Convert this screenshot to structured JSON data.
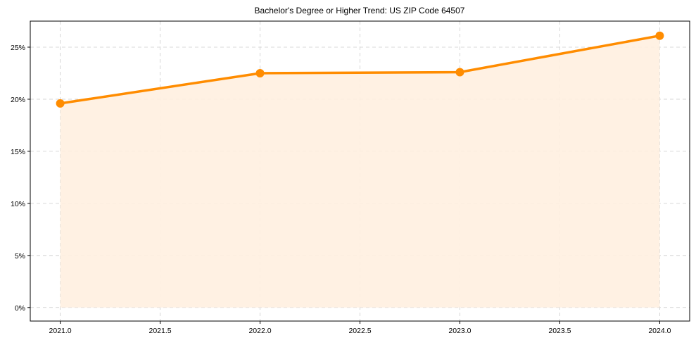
{
  "chart_data": {
    "type": "line",
    "title": "Bachelor's Degree or Higher Trend: US ZIP Code 64507",
    "xlabel": "",
    "ylabel": "",
    "x": [
      2021,
      2022,
      2023,
      2024
    ],
    "series": [
      {
        "name": "Bachelor's Degree or Higher",
        "values": [
          19.6,
          22.5,
          22.6,
          26.1
        ],
        "color": "#FF8C00",
        "fill": true,
        "fill_color": "#FFF0E0"
      }
    ],
    "xticks": [
      "2021.0",
      "2021.5",
      "2022.0",
      "2022.5",
      "2023.0",
      "2023.5",
      "2024.0"
    ],
    "yticks": [
      "0%",
      "5%",
      "10%",
      "15%",
      "20%",
      "25%"
    ],
    "xlim": [
      2020.85,
      2024.15
    ],
    "ylim": [
      -1.3,
      27.5
    ],
    "grid": true,
    "legend": null
  }
}
